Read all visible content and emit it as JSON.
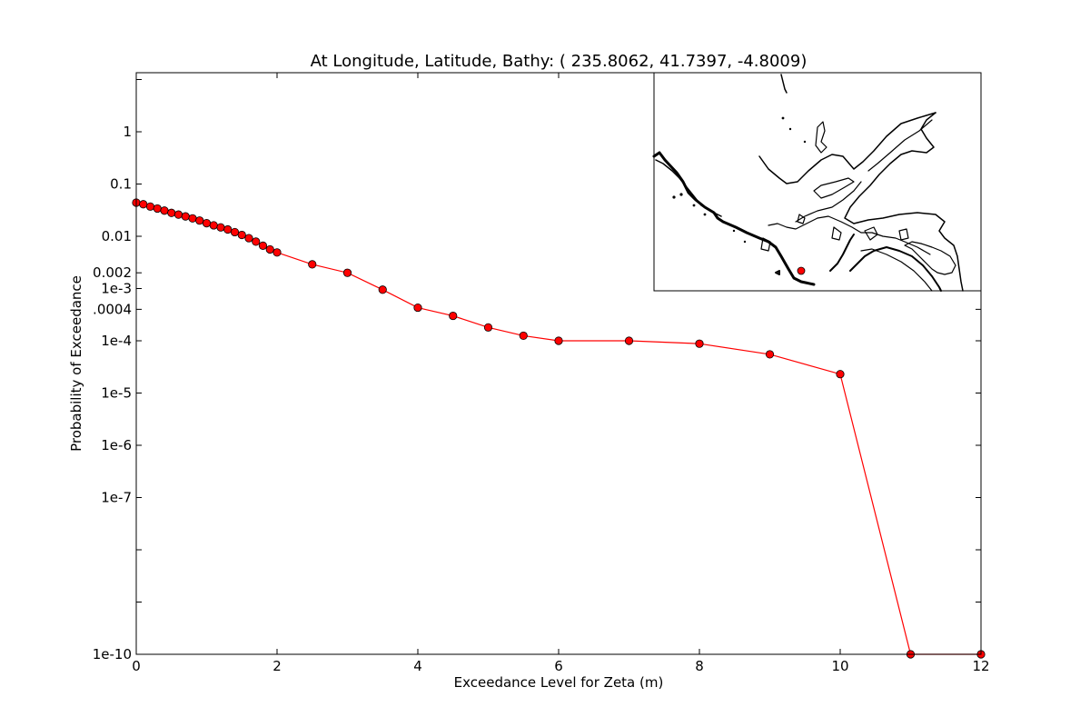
{
  "chart_data": {
    "type": "line",
    "title": "At Longitude, Latitude, Bathy:  ( 235.8062,  41.7397,  -4.8009)",
    "xlabel": "Exceedance Level for Zeta (m)",
    "ylabel": "Probability of Exceedance",
    "xlim": [
      0,
      12
    ],
    "ylim": [
      1e-10,
      13.5
    ],
    "yscale": "log",
    "grid": false,
    "legend": false,
    "x_ticks": [
      "0",
      "2",
      "4",
      "6",
      "8",
      "10",
      "12"
    ],
    "y_ticks": [
      {
        "value": 1,
        "label": "1"
      },
      {
        "value": 0.1,
        "label": "0.1"
      },
      {
        "value": 0.01,
        "label": "0.01"
      },
      {
        "value": 0.002,
        "label": "0.002"
      },
      {
        "value": 0.001,
        "label": "1e-3"
      },
      {
        "value": 0.0004,
        "label": ".0004"
      },
      {
        "value": 0.0001,
        "label": "1e-4"
      },
      {
        "value": 1e-05,
        "label": "1e-5"
      },
      {
        "value": 1e-06,
        "label": "1e-6"
      },
      {
        "value": 1e-07,
        "label": "1e-7"
      },
      {
        "value": 1e-10,
        "label": "1e-10"
      }
    ],
    "series": [
      {
        "color": "#ff0000",
        "marker": "circle",
        "x": [
          0,
          0.1,
          0.2,
          0.3,
          0.4,
          0.5,
          0.6,
          0.7,
          0.8,
          0.9,
          1.0,
          1.1,
          1.2,
          1.3,
          1.4,
          1.5,
          1.6,
          1.7,
          1.8,
          1.9,
          2.0,
          2.5,
          3.0,
          3.5,
          4.0,
          4.5,
          5.0,
          5.5,
          6.0,
          7.0,
          8.0,
          9.0,
          10.0,
          11.0,
          12.0
        ],
        "y": [
          0.044,
          0.041,
          0.037,
          0.034,
          0.031,
          0.028,
          0.026,
          0.024,
          0.022,
          0.02,
          0.0178,
          0.0162,
          0.0148,
          0.0135,
          0.012,
          0.0106,
          0.0092,
          0.0079,
          0.0066,
          0.0056,
          0.0049,
          0.0029,
          0.002,
          0.00095,
          0.00043,
          0.0003,
          0.00018,
          0.000125,
          0.0001,
          0.0001,
          8.8e-05,
          5.5e-05,
          2.3e-05,
          1e-10,
          1e-10
        ]
      }
    ],
    "inset": {
      "type": "map",
      "content": "coastline contour map",
      "marker_color": "#ff0000"
    }
  }
}
